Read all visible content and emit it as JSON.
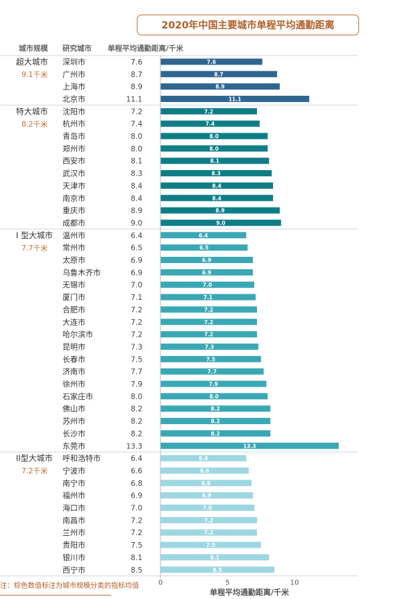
{
  "title": "2020年中国主要城市单程平均通勤距离",
  "headers": {
    "tier": "城市规模",
    "city": "研究城市",
    "value": "单程平均通勤距离/千米"
  },
  "note": "注：棕色数值标注为城市规模分类的指标均值",
  "colors": {
    "super": "#2f6690",
    "mega": "#0f7d86",
    "type1": "#3aa8b4",
    "type2": "#9dd7e2",
    "accent": "#c0703a"
  },
  "chart_data": {
    "type": "bar",
    "orientation": "horizontal",
    "xlabel": "单程平均通勤距离/千米",
    "xlim": [
      0,
      14
    ],
    "xticks": [
      0,
      5,
      10
    ],
    "grid": false,
    "groups": [
      {
        "name": "超大城市",
        "mean": "9.1千米",
        "color_key": "super",
        "cities": [
          "深圳市",
          "广州市",
          "上海市",
          "北京市"
        ],
        "values": [
          7.6,
          8.7,
          8.9,
          11.1
        ],
        "labels": [
          "7.6",
          "8.7",
          "8.9",
          "11.1"
        ]
      },
      {
        "name": "特大城市",
        "mean": "8.2千米",
        "color_key": "mega",
        "cities": [
          "沈阳市",
          "杭州市",
          "青岛市",
          "郑州市",
          "西安市",
          "武汉市",
          "天津市",
          "南京市",
          "重庆市",
          "成都市"
        ],
        "values": [
          7.2,
          7.4,
          8.0,
          8.0,
          8.1,
          8.3,
          8.4,
          8.4,
          8.9,
          9.0
        ],
        "labels": [
          "7.2",
          "7.4",
          "8.0",
          "8.0",
          "8.1",
          "8.3",
          "8.4",
          "8.4",
          "8.9",
          "9.0"
        ]
      },
      {
        "name": "I 型大城市",
        "mean": "7.7千米",
        "color_key": "type1",
        "cities": [
          "温州市",
          "常州市",
          "太原市",
          "乌鲁木齐市",
          "无锡市",
          "厦门市",
          "合肥市",
          "大连市",
          "哈尔滨市",
          "昆明市",
          "长春市",
          "济南市",
          "徐州市",
          "石家庄市",
          "佛山市",
          "苏州市",
          "长沙市",
          "东莞市"
        ],
        "values": [
          6.4,
          6.5,
          6.9,
          6.9,
          7.0,
          7.1,
          7.2,
          7.2,
          7.2,
          7.3,
          7.5,
          7.7,
          7.9,
          8.0,
          8.2,
          8.2,
          8.2,
          13.3
        ],
        "labels": [
          "6.4",
          "6.5",
          "6.9",
          "6.9",
          "7.0",
          "7.1",
          "7.2",
          "7.2",
          "7.2",
          "7.3",
          "7.5",
          "7.7",
          "7.9",
          "8.0",
          "8.2",
          "8.2",
          "8.2",
          "13.3"
        ]
      },
      {
        "name": "II型大城市",
        "mean": "7.2千米",
        "color_key": "type2",
        "cities": [
          "呼和浩特市",
          "宁波市",
          "南宁市",
          "福州市",
          "海口市",
          "南昌市",
          "兰州市",
          "贵阳市",
          "银川市",
          "西宁市"
        ],
        "values": [
          6.4,
          6.6,
          6.8,
          6.9,
          7.0,
          7.2,
          7.2,
          7.5,
          8.1,
          8.5
        ],
        "labels": [
          "6.4",
          "6.6",
          "6.8",
          "6.9",
          "7.0",
          "7.2",
          "7.2",
          "7.5",
          "8.1",
          "8.5"
        ]
      }
    ]
  }
}
